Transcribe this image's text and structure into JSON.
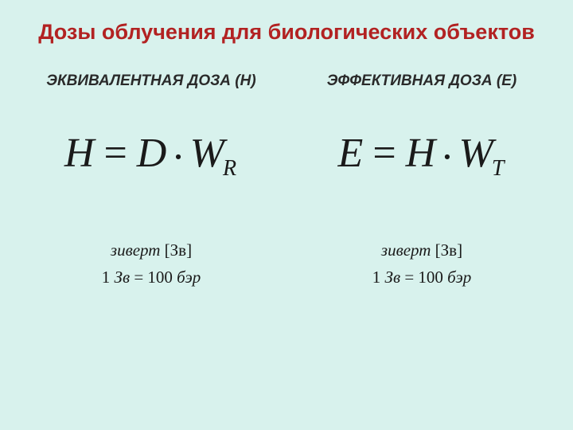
{
  "colors": {
    "background": "#d8f2ed",
    "title": "#b22222",
    "text": "#1a1a1a",
    "subtitle": "#2a2a2a"
  },
  "title": "Дозы облучения для биологических объектов",
  "left": {
    "subtitle": "ЭКВИВАЛЕНТНАЯ ДОЗА (Н)",
    "formula": {
      "lhs": "H",
      "rhs1": "D",
      "rhs2": "W",
      "sub": "R"
    },
    "unit_name": "зиверт",
    "unit_symbol": "[Зв]",
    "conv_lhs_num": "1",
    "conv_lhs_unit": "Зв",
    "conv_eq": "=",
    "conv_rhs_num": "100",
    "conv_rhs_unit": "бэр"
  },
  "right": {
    "subtitle": "ЭФФЕКТИВНАЯ ДОЗА (Е)",
    "formula": {
      "lhs": "E",
      "rhs1": "H",
      "rhs2": "W",
      "sub": "T"
    },
    "unit_name": "зиверт",
    "unit_symbol": "[Зв]",
    "conv_lhs_num": "1",
    "conv_lhs_unit": "Зв",
    "conv_eq": "=",
    "conv_rhs_num": "100",
    "conv_rhs_unit": "бэр"
  }
}
